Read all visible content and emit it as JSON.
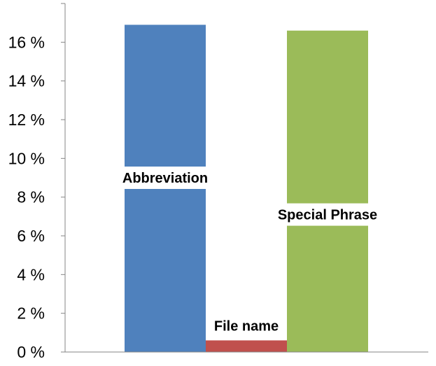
{
  "chart_data": {
    "type": "bar",
    "title": "",
    "xlabel": "",
    "ylabel": "",
    "categories": [
      "Abbreviation",
      "File name",
      "Special Phrase"
    ],
    "values": [
      16.9,
      0.6,
      16.6
    ],
    "colors": [
      "#4f81bd",
      "#c0504d",
      "#9bbb59"
    ],
    "ylim": [
      0,
      18
    ],
    "yticks": [
      0,
      2,
      4,
      6,
      8,
      10,
      12,
      14,
      16
    ],
    "ytick_labels": [
      "0 %",
      "2 %",
      "4 %",
      "6 %",
      "8 %",
      "10 %",
      "12 %",
      "14 %",
      "16 %"
    ],
    "data_labels": [
      "Abbreviation",
      "File name",
      "Special Phrase"
    ],
    "grid": false,
    "legend": "none"
  }
}
